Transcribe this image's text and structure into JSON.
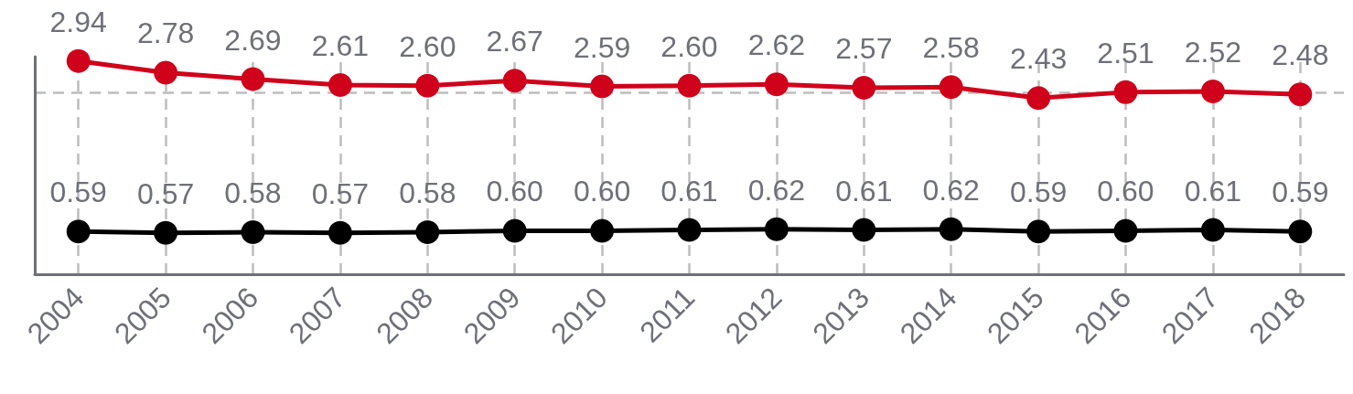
{
  "chart_data": {
    "type": "line",
    "categories": [
      "2004",
      "2005",
      "2006",
      "2007",
      "2008",
      "2009",
      "2010",
      "2011",
      "2012",
      "2013",
      "2014",
      "2015",
      "2016",
      "2017",
      "2018"
    ],
    "series": [
      {
        "color": "#d0021b",
        "values": [
          2.94,
          2.78,
          2.69,
          2.61,
          2.6,
          2.67,
          2.59,
          2.6,
          2.62,
          2.57,
          2.58,
          2.43,
          2.51,
          2.52,
          2.48
        ],
        "value_labels": [
          "2.94",
          "2.78",
          "2.69",
          "2.61",
          "2.60",
          "2.67",
          "2.59",
          "2.60",
          "2.62",
          "2.57",
          "2.58",
          "2.43",
          "2.51",
          "2.52",
          "2.48"
        ]
      },
      {
        "color": "#000000",
        "values": [
          0.59,
          0.57,
          0.58,
          0.57,
          0.58,
          0.6,
          0.6,
          0.61,
          0.62,
          0.61,
          0.62,
          0.59,
          0.6,
          0.61,
          0.59
        ],
        "value_labels": [
          "0.59",
          "0.57",
          "0.58",
          "0.57",
          "0.58",
          "0.60",
          "0.60",
          "0.61",
          "0.62",
          "0.61",
          "0.62",
          "0.59",
          "0.60",
          "0.61",
          "0.59"
        ]
      }
    ],
    "ylim": [
      0,
      3
    ],
    "yticks": [
      {
        "value": 0,
        "label": null
      },
      {
        "value": 2.5,
        "label": null
      }
    ],
    "grid": true,
    "tick_labels": "x",
    "marker": "circle",
    "line_style": "solid"
  }
}
